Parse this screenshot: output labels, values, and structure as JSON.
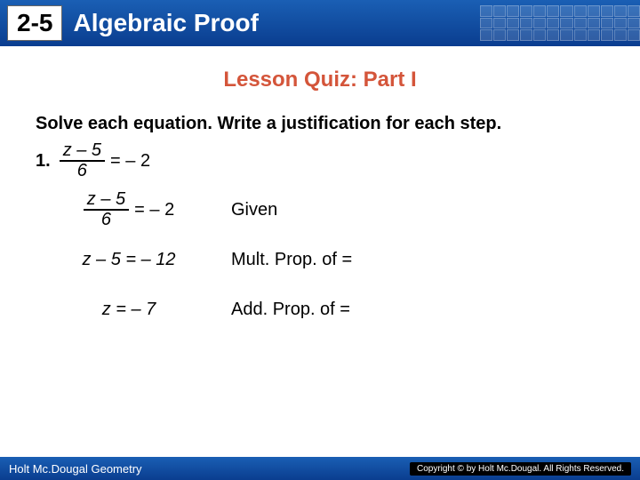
{
  "header": {
    "lesson_number": "2-5",
    "title": "Algebraic Proof",
    "accent_color": "#0a3d8f"
  },
  "subtitle": {
    "text": "Lesson Quiz: Part I",
    "color": "#d4553a"
  },
  "instruction": "Solve each equation. Write a justification for each step.",
  "problem": {
    "number": "1.",
    "frac_num": "z – 5",
    "frac_den": "6",
    "rhs": "= – 2"
  },
  "steps": [
    {
      "type": "fraction",
      "frac_num": "z – 5",
      "frac_den": "6",
      "rhs": "= – 2",
      "justification": "Given"
    },
    {
      "type": "plain",
      "equation": "z – 5 = – 12",
      "justification": "Mult. Prop. of ="
    },
    {
      "type": "plain",
      "equation": "z = – 7",
      "justification": "Add. Prop. of ="
    }
  ],
  "footer": {
    "left": "Holt Mc.Dougal Geometry",
    "right": "Copyright © by Holt Mc.Dougal. All Rights Reserved."
  }
}
